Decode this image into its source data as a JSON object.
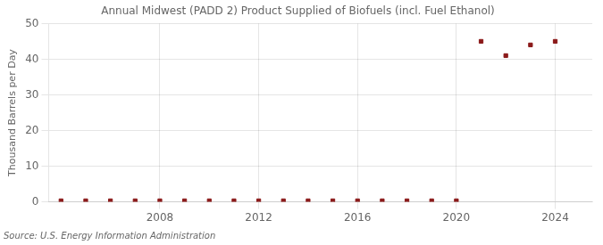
{
  "chart_data": {
    "type": "scatter",
    "title": "Annual Midwest (PADD 2) Product Supplied of Biofuels (incl. Fuel Ethanol)",
    "ylabel": "Thousand Barrels per Day",
    "annotations": [
      "Source: U.S. Energy Information Administration"
    ],
    "x": [
      2004,
      2005,
      2006,
      2007,
      2008,
      2009,
      2010,
      2011,
      2012,
      2013,
      2014,
      2015,
      2016,
      2017,
      2018,
      2019,
      2020,
      2021,
      2022,
      2023,
      2024
    ],
    "values": [
      0.3,
      0.3,
      0.3,
      0.3,
      0.3,
      0.3,
      0.3,
      0.3,
      0.3,
      0.3,
      0.3,
      0.3,
      0.3,
      0.3,
      0.3,
      0.3,
      0.3,
      45,
      41,
      44,
      45
    ],
    "color": "#8b1a1a",
    "marker": "square",
    "xlim": [
      2003.5,
      2025.5
    ],
    "xticks": [
      2008,
      2012,
      2016,
      2020,
      2024
    ],
    "ylim": [
      0,
      50
    ],
    "yticks": [
      0,
      10,
      20,
      30,
      40,
      50
    ],
    "grid": true
  }
}
